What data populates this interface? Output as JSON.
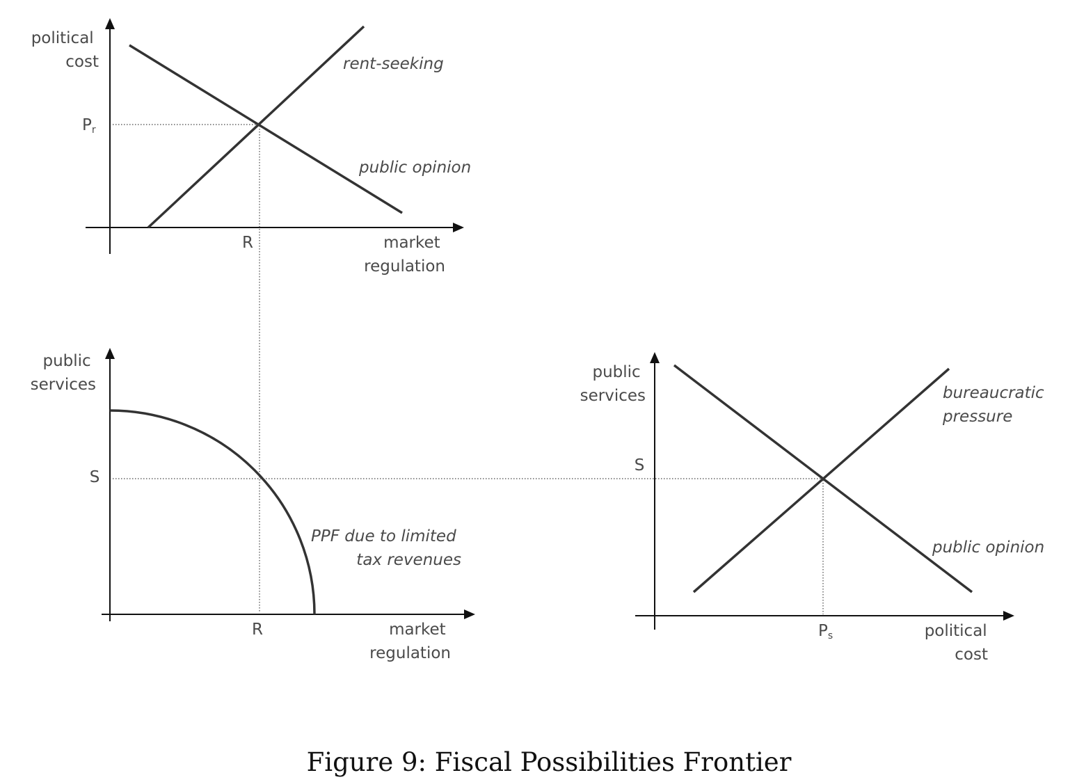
{
  "caption": "Figure 9: Fiscal Possibilities Frontier",
  "top_panel": {
    "y_label": [
      "political",
      "cost"
    ],
    "x_label": [
      "market",
      "regulation"
    ],
    "y_tick": {
      "main": "P",
      "subscript": "r"
    },
    "x_tick": "R",
    "curve_labels": {
      "rising": "rent-seeking",
      "falling": "public opinion"
    }
  },
  "bottom_left_panel": {
    "y_label": [
      "public",
      "services"
    ],
    "x_label": [
      "market",
      "regulation"
    ],
    "y_tick": "S",
    "x_tick": "R",
    "curve_label": [
      "PPF due to limited",
      "tax revenues"
    ]
  },
  "bottom_right_panel": {
    "y_label": [
      "public",
      "services"
    ],
    "x_label": [
      "political",
      "cost"
    ],
    "y_tick": "S",
    "x_tick": {
      "main": "P",
      "subscript": "s"
    },
    "curve_labels": {
      "rising": [
        "bureaucratic",
        "pressure"
      ],
      "falling": "public opinion"
    }
  }
}
